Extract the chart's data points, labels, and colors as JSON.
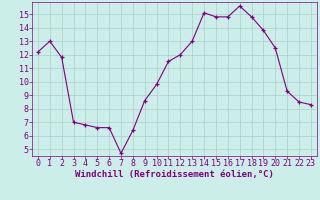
{
  "x": [
    0,
    1,
    2,
    3,
    4,
    5,
    6,
    7,
    8,
    9,
    10,
    11,
    12,
    13,
    14,
    15,
    16,
    17,
    18,
    19,
    20,
    21,
    22,
    23
  ],
  "y": [
    12.2,
    13.0,
    11.8,
    7.0,
    6.8,
    6.6,
    6.6,
    4.7,
    6.4,
    8.6,
    9.8,
    11.5,
    12.0,
    13.0,
    15.1,
    14.8,
    14.8,
    15.6,
    14.8,
    13.8,
    12.5,
    9.3,
    8.5,
    8.3
  ],
  "line_color": "#800080",
  "marker": "+",
  "marker_size": 3,
  "bg_color": "#cceee8",
  "grid_color": "#aacccc",
  "axis_color": "#800080",
  "xlabel": "Windchill (Refroidissement éolien,°C)",
  "ylim": [
    4.5,
    15.9
  ],
  "xlim": [
    -0.5,
    23.5
  ],
  "yticks": [
    5,
    6,
    7,
    8,
    9,
    10,
    11,
    12,
    13,
    14,
    15
  ],
  "xticks": [
    0,
    1,
    2,
    3,
    4,
    5,
    6,
    7,
    8,
    9,
    10,
    11,
    12,
    13,
    14,
    15,
    16,
    17,
    18,
    19,
    20,
    21,
    22,
    23
  ],
  "tick_font_size": 6.0,
  "label_font_size": 6.5
}
